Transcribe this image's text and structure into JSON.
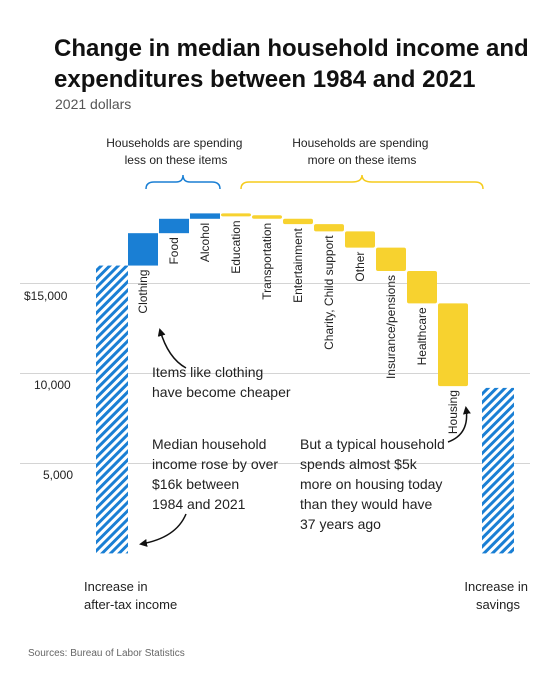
{
  "title": "Change in median household income and expenditures between 1984 and 2021",
  "subtitle": "2021 dollars",
  "source": "Sources: Bureau of Labor Statistics",
  "colors": {
    "decrease": "#1a7fd4",
    "increase": "#f7d22f",
    "grid": "#d4d4d4",
    "text": "#222222"
  },
  "chart_data": {
    "type": "bar",
    "subtype": "waterfall",
    "y_ticks": [
      "$15,000",
      "10,000",
      "5,000"
    ],
    "y_tick_values": [
      15000,
      10000,
      5000
    ],
    "ylim": [
      0,
      17000
    ],
    "start": {
      "label": "Increase in after-tax income",
      "value": 16000,
      "pattern": "hatched"
    },
    "steps": [
      {
        "label": "Clothing",
        "change": 1800,
        "group": "less"
      },
      {
        "label": "Food",
        "change": 800,
        "group": "less"
      },
      {
        "label": "Alcohol",
        "change": 300,
        "group": "less"
      },
      {
        "label": "Education",
        "change": -100,
        "group": "more"
      },
      {
        "label": "Transportation",
        "change": -200,
        "group": "more"
      },
      {
        "label": "Entertainment",
        "change": -300,
        "group": "more"
      },
      {
        "label": "Charity, Child support",
        "change": -400,
        "group": "more"
      },
      {
        "label": "Other",
        "change": -900,
        "group": "more"
      },
      {
        "label": "Insurance/pensions",
        "change": -1300,
        "group": "more"
      },
      {
        "label": "Healthcare",
        "change": -1800,
        "group": "more"
      },
      {
        "label": "Housing",
        "change": -4600,
        "group": "more"
      }
    ],
    "end": {
      "label": "Increase in savings",
      "value": 9200,
      "pattern": "hatched"
    },
    "groups": {
      "less": "Households are spending less on these items",
      "more": "Households are spending more on these items"
    },
    "annotations": {
      "clothing": "Items like clothing have become cheaper",
      "income": "Median household income rose by over $16k between 1984 and 2021",
      "housing": "But a typical household spends almost $5k more on housing today than they would have 37 years ago"
    }
  }
}
